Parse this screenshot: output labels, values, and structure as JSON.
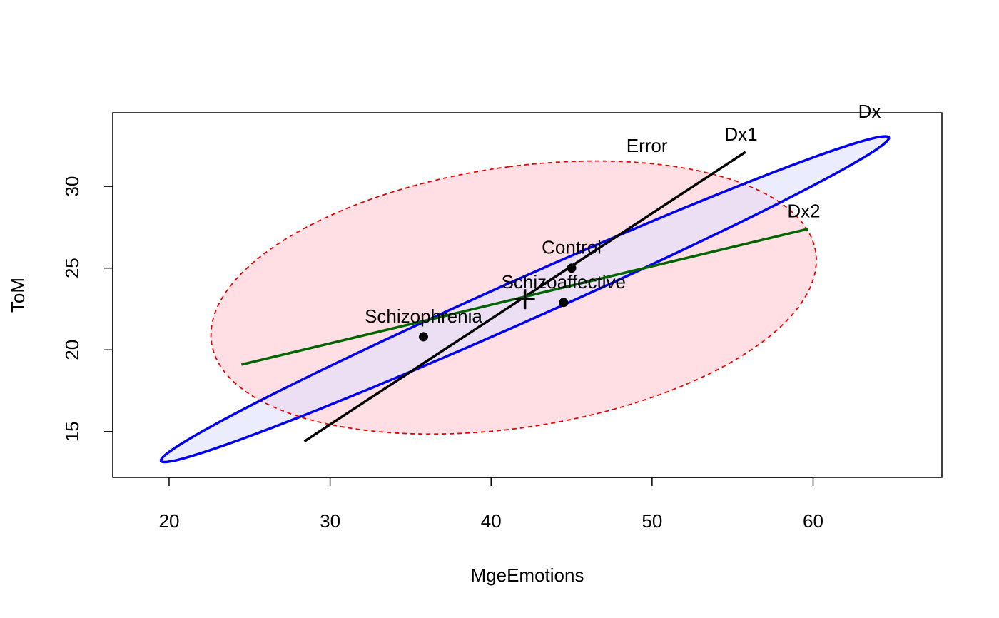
{
  "chart_data": {
    "type": "scatter",
    "title": "",
    "xlabel": "MgeEmotions",
    "ylabel": "ToM",
    "xlim": [
      16.5,
      68
    ],
    "ylim": [
      12.2,
      34.5
    ],
    "xticks": [
      20,
      30,
      40,
      50,
      60
    ],
    "yticks": [
      15,
      20,
      25,
      30
    ],
    "x_tick_labels": [
      "20",
      "30",
      "40",
      "50",
      "60"
    ],
    "y_tick_labels": [
      "15",
      "20",
      "25",
      "30"
    ],
    "points": [
      {
        "label": "Control",
        "x": 45.0,
        "y": 25.0
      },
      {
        "label": "Schizoaffective",
        "x": 44.5,
        "y": 22.9
      },
      {
        "label": "Schizophrenia",
        "x": 35.8,
        "y": 20.8
      }
    ],
    "grand_mean": {
      "x": 42.1,
      "y": 23.1
    },
    "ellipses": [
      {
        "name": "Error",
        "label": "Error",
        "color": "#ee0000",
        "fill": "#ffdfe3",
        "style": "dashed",
        "center": {
          "x": 41.4,
          "y": 23.2
        },
        "axis_end_1": {
          "x": 41.1,
          "y": 31.2
        },
        "axis_end_2": {
          "x": 60.2,
          "y": 25.6
        },
        "label_at": {
          "x": 48.4,
          "y": 32.1
        }
      },
      {
        "name": "Dx",
        "label": "Dx",
        "color": "#0000ee",
        "fill": "#e0e0ff",
        "style": "solid",
        "center": {
          "x": 42.1,
          "y": 23.1
        },
        "axis_end_1": {
          "x": 64.7,
          "y": 33.0
        },
        "axis_end_2": {
          "x": 41.4,
          "y": 24.2
        },
        "label_at": {
          "x": 62.8,
          "y": 34.2
        }
      }
    ],
    "axis_lines": [
      {
        "name": "Dx1",
        "label": "Dx1",
        "color": "#000000",
        "from": {
          "x": 28.4,
          "y": 14.4
        },
        "to": {
          "x": 55.8,
          "y": 32.1
        },
        "label_at": {
          "x": 54.5,
          "y": 32.8
        }
      },
      {
        "name": "Dx2",
        "label": "Dx2",
        "color": "#006400",
        "from": {
          "x": 24.5,
          "y": 19.1
        },
        "to": {
          "x": 59.7,
          "y": 27.4
        },
        "label_at": {
          "x": 58.4,
          "y": 28.1
        }
      }
    ]
  }
}
